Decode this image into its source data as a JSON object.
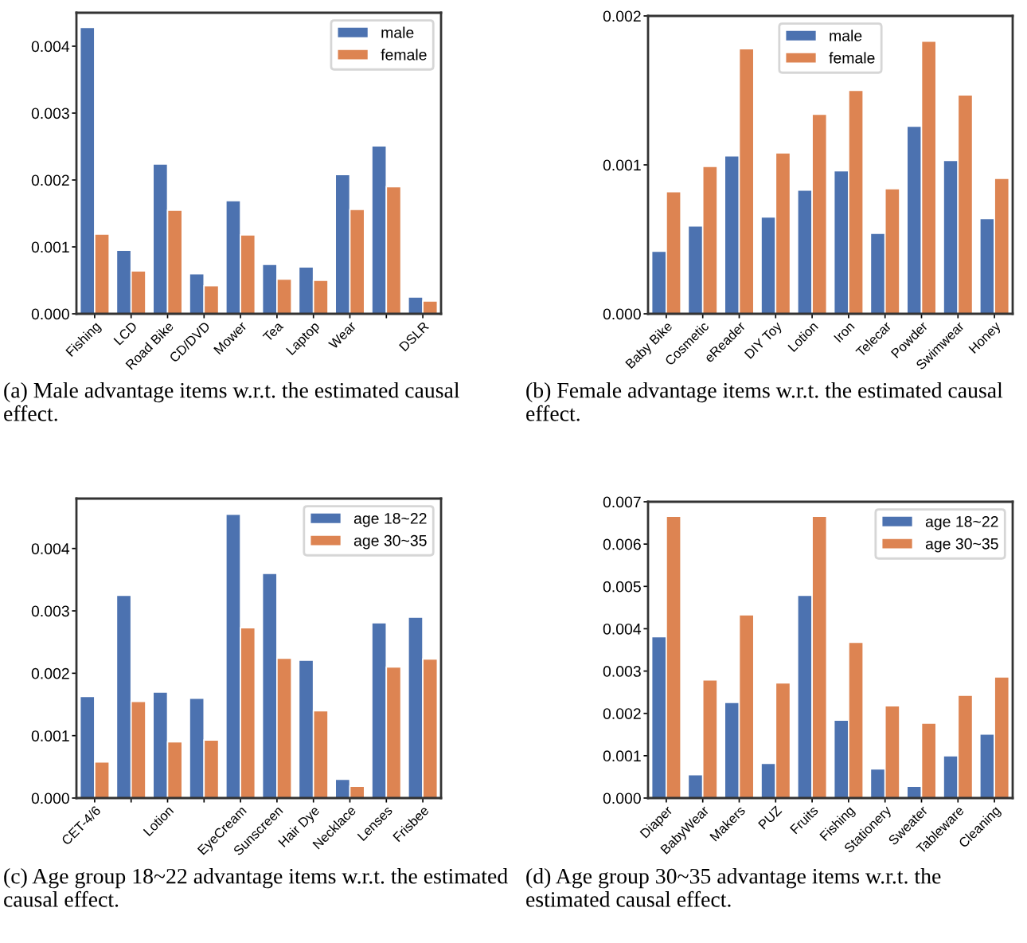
{
  "chart_data": [
    {
      "type": "bar",
      "categories": [
        "Fishing",
        "LCD",
        "Road Bike",
        "CD/DVD",
        "Mower",
        "Tea",
        "Laptop",
        "Wear",
        null,
        "DSLR"
      ],
      "series": [
        {
          "name": "male",
          "color": "#4c72b0",
          "values": [
            0.00428,
            0.00095,
            0.00224,
            0.0006,
            0.00169,
            0.00074,
            0.0007,
            0.00208,
            0.00251,
            0.00025
          ]
        },
        {
          "name": "female",
          "color": "#dd8452",
          "values": [
            0.00119,
            0.00064,
            0.00155,
            0.00042,
            0.00118,
            0.00052,
            0.0005,
            0.00156,
            0.0019,
            0.00019
          ]
        }
      ],
      "ylim": [
        0,
        0.0045
      ],
      "yticks": [
        {
          "value": 0,
          "label": "0.000"
        },
        {
          "value": 0.001,
          "label": "0.001"
        },
        {
          "value": 0.002,
          "label": "0.002"
        },
        {
          "value": 0.003,
          "label": "0.003"
        },
        {
          "value": 0.004,
          "label": "0.004"
        }
      ],
      "legend": "top right",
      "grid": false,
      "annotations": [
        "(a) Male advantage items w.r.t. the estimated causal effect."
      ]
    },
    {
      "type": "bar",
      "categories": [
        "Baby Bike",
        "Cosmetic",
        "eReader",
        "DIY Toy",
        "Lotion",
        "Iron",
        "Telecar",
        "Powder",
        "Swimwear",
        "Honey"
      ],
      "series": [
        {
          "name": "male",
          "color": "#4c72b0",
          "values": [
            0.00042,
            0.00059,
            0.00106,
            0.00065,
            0.00083,
            0.00096,
            0.00054,
            0.00126,
            0.00103,
            0.00064
          ]
        },
        {
          "name": "female",
          "color": "#dd8452",
          "values": [
            0.00082,
            0.00099,
            0.00178,
            0.00108,
            0.00134,
            0.0015,
            0.00084,
            0.00183,
            0.00147,
            0.00091
          ]
        }
      ],
      "ylim": [
        0,
        0.002
      ],
      "yticks": [
        {
          "value": 0,
          "label": "0.000"
        },
        {
          "value": 0.001,
          "label": "0.001"
        },
        {
          "value": 0.002,
          "label": "0.002"
        }
      ],
      "legend": "top",
      "grid": false,
      "annotations": [
        "(b) Female advantage items w.r.t. the estimated causal effect."
      ]
    },
    {
      "type": "bar",
      "categories": [
        "CET-4/6",
        null,
        "Lotion",
        null,
        "EyeCream",
        "Sunscreen",
        "Hair Dye",
        "Necklace",
        "Lenses",
        "Frisbee"
      ],
      "series": [
        {
          "name": "age 18~22",
          "color": "#4c72b0",
          "values": [
            0.00163,
            0.00325,
            0.0017,
            0.0016,
            0.00455,
            0.0036,
            0.00221,
            0.0003,
            0.00281,
            0.0029
          ]
        },
        {
          "name": "age 30~35",
          "color": "#dd8452",
          "values": [
            0.00058,
            0.00155,
            0.0009,
            0.00093,
            0.00273,
            0.00224,
            0.0014,
            0.00019,
            0.0021,
            0.00223
          ]
        }
      ],
      "ylim": [
        0,
        0.0048
      ],
      "yticks": [
        {
          "value": 0,
          "label": "0.000"
        },
        {
          "value": 0.001,
          "label": "0.001"
        },
        {
          "value": 0.002,
          "label": "0.002"
        },
        {
          "value": 0.003,
          "label": "0.003"
        },
        {
          "value": 0.004,
          "label": "0.004"
        }
      ],
      "legend": "top right",
      "grid": false,
      "annotations": [
        "(c) Age group 18~22 advantage items w.r.t. the estimated causal effect."
      ]
    },
    {
      "type": "bar",
      "categories": [
        "Diaper",
        "BabyWear",
        "Makers",
        "PUZ",
        "Fruits",
        "Fishing",
        "Stationery",
        "Sweater",
        "Tableware",
        "Cleaning"
      ],
      "series": [
        {
          "name": "age 18~22",
          "color": "#4c72b0",
          "values": [
            0.00381,
            0.00055,
            0.00226,
            0.00082,
            0.00479,
            0.00184,
            0.00069,
            0.00028,
            0.001,
            0.00151
          ]
        },
        {
          "name": "age 30~35",
          "color": "#dd8452",
          "values": [
            0.00666,
            0.00279,
            0.00433,
            0.00272,
            0.00666,
            0.00368,
            0.00218,
            0.00177,
            0.00243,
            0.00286
          ]
        }
      ],
      "ylim": [
        0,
        0.007
      ],
      "yticks": [
        {
          "value": 0,
          "label": "0.000"
        },
        {
          "value": 0.001,
          "label": "0.001"
        },
        {
          "value": 0.002,
          "label": "0.002"
        },
        {
          "value": 0.003,
          "label": "0.003"
        },
        {
          "value": 0.004,
          "label": "0.004"
        },
        {
          "value": 0.005,
          "label": "0.005"
        },
        {
          "value": 0.006,
          "label": "0.006"
        },
        {
          "value": 0.007,
          "label": "0.007"
        }
      ],
      "legend": "top right",
      "grid": false,
      "annotations": [
        "(d) Age group 30~35 advantage items w.r.t. the estimated causal effect."
      ]
    }
  ]
}
